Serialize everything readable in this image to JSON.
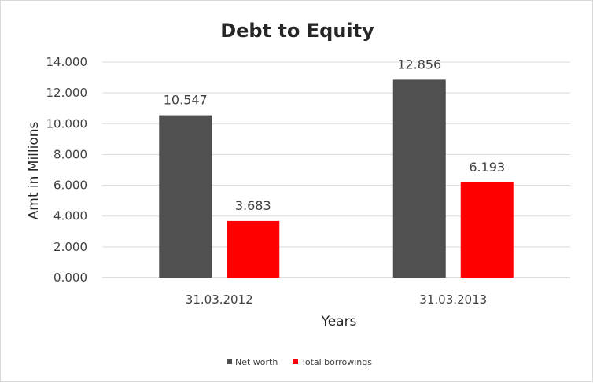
{
  "chart_data": {
    "type": "bar",
    "title": "Debt to Equity",
    "xlabel": "Years",
    "ylabel": "Amt in Millions",
    "categories": [
      "31.03.2012",
      "31.03.2013"
    ],
    "series": [
      {
        "name": "Net worth",
        "values": [
          10.547,
          12.856
        ],
        "value_labels": [
          "10.547",
          "12.856"
        ],
        "color": "#505050"
      },
      {
        "name": "Total borrowings",
        "values": [
          3.683,
          6.193
        ],
        "value_labels": [
          "3.683",
          "6.193"
        ],
        "color": "#ff0000"
      }
    ],
    "ylim": [
      0,
      14
    ],
    "yticks": [
      "0.000",
      "2.000",
      "4.000",
      "6.000",
      "8.000",
      "10.000",
      "12.000",
      "14.000"
    ],
    "grid": true,
    "legend_position": "bottom"
  }
}
